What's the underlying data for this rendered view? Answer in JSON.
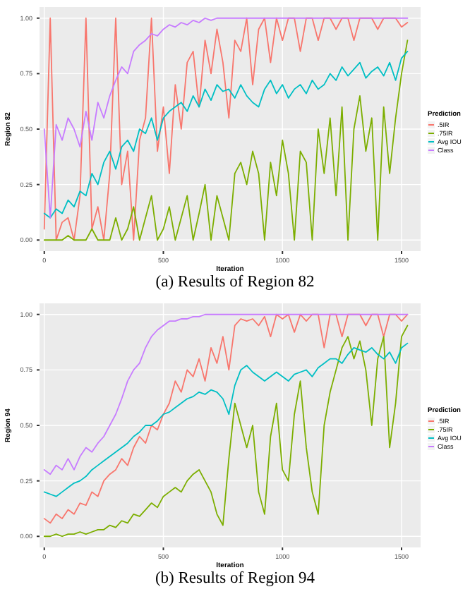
{
  "chart_data": [
    {
      "type": "line",
      "title": "(a) Results of Region 82",
      "xlabel": "Iteration",
      "ylabel": "Region 82",
      "legend_title": "Prediction",
      "legend": "right",
      "grid": true,
      "x": [
        0,
        25,
        50,
        75,
        100,
        125,
        150,
        175,
        200,
        225,
        250,
        275,
        300,
        325,
        350,
        375,
        400,
        425,
        450,
        475,
        500,
        525,
        550,
        575,
        600,
        625,
        650,
        675,
        700,
        725,
        750,
        775,
        800,
        825,
        850,
        875,
        900,
        925,
        950,
        975,
        1000,
        1025,
        1050,
        1075,
        1100,
        1125,
        1150,
        1175,
        1200,
        1225,
        1250,
        1275,
        1300,
        1325,
        1350,
        1375,
        1400,
        1425,
        1450,
        1475,
        1500,
        1525
      ],
      "xlim": [
        -20,
        1580
      ],
      "xticks": [
        0,
        500,
        1000,
        1500
      ],
      "ylim": [
        -0.05,
        1.05
      ],
      "yticks": [
        {
          "value": 0,
          "label": "0.00"
        },
        {
          "value": 0.25,
          "label": "0.25"
        },
        {
          "value": 0.5,
          "label": "0.50"
        },
        {
          "value": 0.75,
          "label": "0.75"
        },
        {
          "value": 1,
          "label": "1.00"
        }
      ],
      "series": [
        {
          "name": ".5IR",
          "color": "#f8766d",
          "values": [
            0.05,
            1,
            0,
            0.08,
            0.1,
            0,
            0.2,
            1,
            0.05,
            0.15,
            0,
            0.3,
            1,
            0.25,
            0.4,
            0,
            0.45,
            0.55,
            1,
            0.4,
            0.6,
            0.3,
            0.7,
            0.5,
            0.8,
            0.85,
            0.6,
            0.9,
            0.75,
            0.95,
            0.8,
            0.55,
            0.9,
            0.85,
            1,
            0.7,
            0.95,
            1,
            0.8,
            1,
            0.9,
            1,
            1,
            0.85,
            1,
            1,
            0.9,
            1,
            1,
            0.95,
            1,
            1,
            0.9,
            1,
            1,
            1,
            0.95,
            1,
            1,
            1,
            0.96,
            0.98
          ]
        },
        {
          "name": ".75IR",
          "color": "#7cae00",
          "values": [
            0,
            0,
            0,
            0,
            0.02,
            0,
            0,
            0,
            0.05,
            0,
            0,
            0,
            0.1,
            0,
            0.05,
            0.15,
            0,
            0.1,
            0.2,
            0,
            0.05,
            0.15,
            0,
            0.1,
            0.2,
            0,
            0.12,
            0.25,
            0,
            0.2,
            0.1,
            0,
            0.3,
            0.35,
            0.25,
            0.4,
            0.3,
            0,
            0.35,
            0.2,
            0.45,
            0.3,
            0,
            0.4,
            0.35,
            0,
            0.5,
            0.3,
            0.55,
            0.2,
            0.6,
            0,
            0.5,
            0.65,
            0.4,
            0.55,
            0,
            0.6,
            0.3,
            0.55,
            0.75,
            0.9
          ]
        },
        {
          "name": "Avg IOU",
          "color": "#00bfc4",
          "values": [
            0.12,
            0.1,
            0.14,
            0.12,
            0.18,
            0.15,
            0.22,
            0.2,
            0.3,
            0.25,
            0.35,
            0.4,
            0.32,
            0.42,
            0.45,
            0.4,
            0.5,
            0.48,
            0.55,
            0.45,
            0.55,
            0.58,
            0.6,
            0.62,
            0.58,
            0.65,
            0.6,
            0.68,
            0.63,
            0.7,
            0.67,
            0.68,
            0.64,
            0.7,
            0.65,
            0.62,
            0.6,
            0.68,
            0.72,
            0.66,
            0.7,
            0.64,
            0.68,
            0.7,
            0.66,
            0.72,
            0.68,
            0.7,
            0.75,
            0.72,
            0.78,
            0.74,
            0.77,
            0.8,
            0.73,
            0.76,
            0.78,
            0.74,
            0.8,
            0.72,
            0.82,
            0.85
          ]
        },
        {
          "name": "Class",
          "color": "#c77cff",
          "values": [
            0.5,
            0.1,
            0.52,
            0.45,
            0.55,
            0.5,
            0.42,
            0.58,
            0.45,
            0.62,
            0.55,
            0.65,
            0.72,
            0.78,
            0.75,
            0.85,
            0.88,
            0.9,
            0.93,
            0.92,
            0.95,
            0.97,
            0.96,
            0.98,
            0.97,
            0.99,
            0.98,
            1,
            0.99,
            1,
            1,
            1,
            1,
            1,
            1,
            1,
            1,
            1,
            1,
            1,
            1,
            1,
            1,
            1,
            1,
            1,
            1,
            1,
            1,
            1,
            1,
            1,
            1,
            1,
            1,
            1,
            1,
            1,
            1,
            1,
            1,
            1
          ]
        }
      ]
    },
    {
      "type": "line",
      "title": "(b) Results of Region 94",
      "xlabel": "Iteration",
      "ylabel": "Region 94",
      "legend_title": "Prediction",
      "legend": "right",
      "grid": true,
      "x": [
        0,
        25,
        50,
        75,
        100,
        125,
        150,
        175,
        200,
        225,
        250,
        275,
        300,
        325,
        350,
        375,
        400,
        425,
        450,
        475,
        500,
        525,
        550,
        575,
        600,
        625,
        650,
        675,
        700,
        725,
        750,
        775,
        800,
        825,
        850,
        875,
        900,
        925,
        950,
        975,
        1000,
        1025,
        1050,
        1075,
        1100,
        1125,
        1150,
        1175,
        1200,
        1225,
        1250,
        1275,
        1300,
        1325,
        1350,
        1375,
        1400,
        1425,
        1450,
        1475,
        1500,
        1525
      ],
      "xlim": [
        -20,
        1580
      ],
      "xticks": [
        0,
        500,
        1000,
        1500
      ],
      "ylim": [
        -0.05,
        1.05
      ],
      "yticks": [
        {
          "value": 0,
          "label": "0.00"
        },
        {
          "value": 0.25,
          "label": "0.25"
        },
        {
          "value": 0.5,
          "label": "0.50"
        },
        {
          "value": 0.75,
          "label": "0.75"
        },
        {
          "value": 1,
          "label": "1.00"
        }
      ],
      "series": [
        {
          "name": ".5IR",
          "color": "#f8766d",
          "values": [
            0.08,
            0.06,
            0.1,
            0.08,
            0.12,
            0.1,
            0.15,
            0.14,
            0.2,
            0.18,
            0.25,
            0.28,
            0.3,
            0.35,
            0.32,
            0.4,
            0.45,
            0.42,
            0.5,
            0.48,
            0.55,
            0.6,
            0.7,
            0.65,
            0.75,
            0.72,
            0.8,
            0.7,
            0.85,
            0.78,
            0.9,
            0.75,
            0.95,
            0.98,
            0.97,
            0.98,
            0.95,
            0.99,
            0.9,
            1,
            0.98,
            1,
            0.92,
            1,
            0.97,
            1,
            1,
            0.85,
            1,
            1,
            0.9,
            1,
            1,
            1,
            0.95,
            1,
            1,
            0.9,
            1,
            1,
            0.97,
            1
          ]
        },
        {
          "name": ".75IR",
          "color": "#7cae00",
          "values": [
            0,
            0,
            0.01,
            0,
            0.01,
            0.01,
            0.02,
            0.01,
            0.02,
            0.03,
            0.03,
            0.05,
            0.04,
            0.07,
            0.06,
            0.1,
            0.09,
            0.12,
            0.15,
            0.13,
            0.18,
            0.2,
            0.22,
            0.2,
            0.25,
            0.28,
            0.3,
            0.25,
            0.2,
            0.1,
            0.05,
            0.35,
            0.6,
            0.5,
            0.4,
            0.5,
            0.2,
            0.1,
            0.45,
            0.6,
            0.3,
            0.25,
            0.55,
            0.7,
            0.4,
            0.2,
            0.1,
            0.5,
            0.65,
            0.75,
            0.85,
            0.9,
            0.8,
            0.88,
            0.75,
            0.5,
            0.8,
            0.9,
            0.4,
            0.6,
            0.9,
            0.95
          ]
        },
        {
          "name": "Avg IOU",
          "color": "#00bfc4",
          "values": [
            0.2,
            0.19,
            0.18,
            0.2,
            0.22,
            0.24,
            0.25,
            0.27,
            0.3,
            0.32,
            0.34,
            0.36,
            0.38,
            0.4,
            0.42,
            0.45,
            0.47,
            0.5,
            0.5,
            0.52,
            0.55,
            0.56,
            0.58,
            0.6,
            0.62,
            0.63,
            0.65,
            0.64,
            0.66,
            0.65,
            0.62,
            0.55,
            0.68,
            0.75,
            0.77,
            0.74,
            0.72,
            0.7,
            0.72,
            0.74,
            0.72,
            0.7,
            0.73,
            0.74,
            0.75,
            0.72,
            0.76,
            0.78,
            0.8,
            0.8,
            0.78,
            0.82,
            0.85,
            0.84,
            0.83,
            0.85,
            0.82,
            0.8,
            0.83,
            0.78,
            0.85,
            0.87
          ]
        },
        {
          "name": "Class",
          "color": "#c77cff",
          "values": [
            0.3,
            0.28,
            0.32,
            0.3,
            0.35,
            0.3,
            0.36,
            0.4,
            0.38,
            0.42,
            0.45,
            0.5,
            0.55,
            0.62,
            0.7,
            0.75,
            0.78,
            0.85,
            0.9,
            0.93,
            0.95,
            0.97,
            0.97,
            0.98,
            0.98,
            0.99,
            0.99,
            1,
            1,
            1,
            1,
            1,
            1,
            1,
            1,
            1,
            1,
            1,
            1,
            1,
            1,
            1,
            1,
            1,
            1,
            1,
            1,
            1,
            1,
            1,
            1,
            1,
            1,
            1,
            1,
            1,
            1,
            1,
            1,
            1,
            1,
            1
          ]
        }
      ]
    }
  ]
}
